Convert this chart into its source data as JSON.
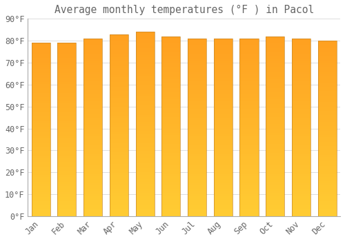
{
  "title": "Average monthly temperatures (°F ) in Pacol",
  "months": [
    "Jan",
    "Feb",
    "Mar",
    "Apr",
    "May",
    "Jun",
    "Jul",
    "Aug",
    "Sep",
    "Oct",
    "Nov",
    "Dec"
  ],
  "values": [
    79,
    79,
    81,
    83,
    84,
    82,
    81,
    81,
    81,
    82,
    81,
    80
  ],
  "bar_color_bottom": "#FFCC33",
  "bar_color_top": "#FFA020",
  "bar_edge_color": "#C8882A",
  "background_color": "#FFFFFF",
  "plot_bg_color": "#FFFFFF",
  "grid_color": "#DDDDDD",
  "text_color": "#666666",
  "ylim": [
    0,
    90
  ],
  "yticks": [
    0,
    10,
    20,
    30,
    40,
    50,
    60,
    70,
    80,
    90
  ],
  "title_fontsize": 10.5,
  "tick_fontsize": 8.5,
  "bar_width": 0.72
}
